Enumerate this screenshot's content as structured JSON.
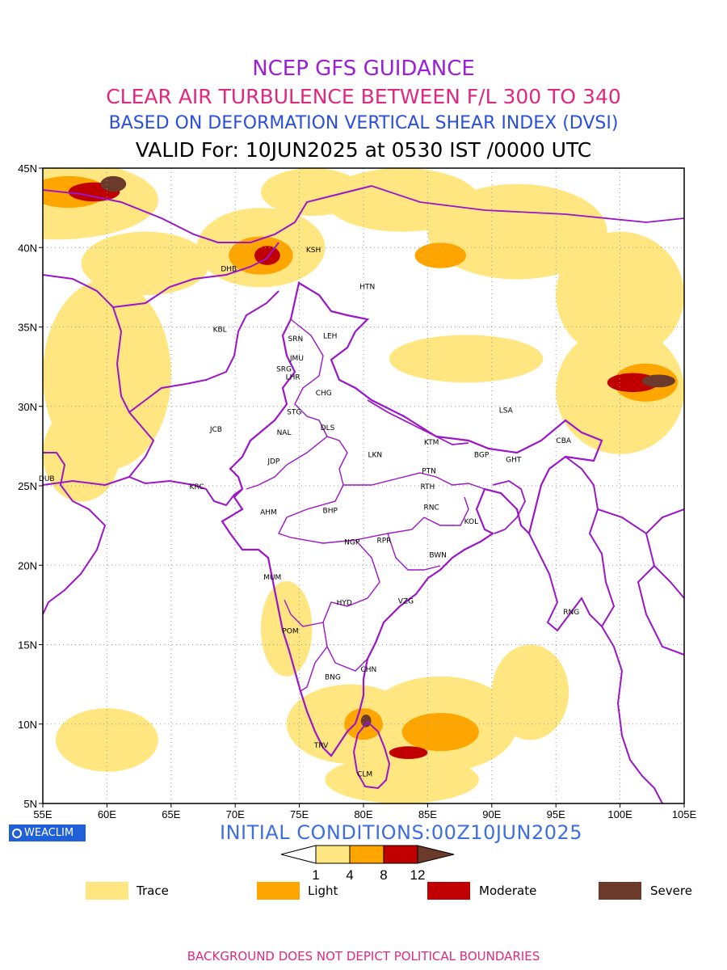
{
  "titles": {
    "line1": "NCEP GFS GUIDANCE",
    "line2": "CLEAR AIR TURBULENCE BETWEEN F/L 300 TO 340",
    "line3": "BASED ON DEFORMATION VERTICAL SHEAR INDEX (DVSI)",
    "line4": "VALID For: 10JUN2025 at 0530 IST /0000 UTC"
  },
  "map": {
    "lon_range": [
      55,
      105
    ],
    "lat_range": [
      5,
      45
    ],
    "lon_ticks": [
      "55E",
      "60E",
      "65E",
      "70E",
      "75E",
      "80E",
      "85E",
      "90E",
      "95E",
      "100E",
      "105E"
    ],
    "lat_ticks": [
      "45N",
      "40N",
      "35N",
      "30N",
      "25N",
      "20N",
      "15N",
      "10N",
      "5N"
    ],
    "grid": true,
    "stations": [
      {
        "code": "DHB",
        "lon": 69.5,
        "lat": 38.5
      },
      {
        "code": "KSH",
        "lon": 76.1,
        "lat": 39.7
      },
      {
        "code": "HTN",
        "lon": 80.3,
        "lat": 37.4
      },
      {
        "code": "KBL",
        "lon": 68.8,
        "lat": 34.7
      },
      {
        "code": "SRN",
        "lon": 74.7,
        "lat": 34.1
      },
      {
        "code": "LEH",
        "lon": 77.4,
        "lat": 34.3
      },
      {
        "code": "JMU",
        "lon": 74.8,
        "lat": 32.9
      },
      {
        "code": "SRG",
        "lon": 73.8,
        "lat": 32.2
      },
      {
        "code": "LHR",
        "lon": 74.5,
        "lat": 31.7
      },
      {
        "code": "CHG",
        "lon": 76.9,
        "lat": 30.7
      },
      {
        "code": "STG",
        "lon": 74.6,
        "lat": 29.5
      },
      {
        "code": "LSA",
        "lon": 91.1,
        "lat": 29.6
      },
      {
        "code": "JCB",
        "lon": 68.5,
        "lat": 28.4
      },
      {
        "code": "NAL",
        "lon": 73.8,
        "lat": 28.2
      },
      {
        "code": "DLS",
        "lon": 77.2,
        "lat": 28.5
      },
      {
        "code": "KTM",
        "lon": 85.3,
        "lat": 27.6
      },
      {
        "code": "CBA",
        "lon": 95.6,
        "lat": 27.7
      },
      {
        "code": "BGP",
        "lon": 89.2,
        "lat": 26.8
      },
      {
        "code": "GHT",
        "lon": 91.7,
        "lat": 26.5
      },
      {
        "code": "LKN",
        "lon": 80.9,
        "lat": 26.8
      },
      {
        "code": "JDP",
        "lon": 73.0,
        "lat": 26.4
      },
      {
        "code": "PTN",
        "lon": 85.1,
        "lat": 25.8
      },
      {
        "code": "DUB",
        "lon": 55.3,
        "lat": 25.3
      },
      {
        "code": "KRC",
        "lon": 67.0,
        "lat": 24.8
      },
      {
        "code": "RTH",
        "lon": 85.0,
        "lat": 24.8
      },
      {
        "code": "BHP",
        "lon": 77.4,
        "lat": 23.3
      },
      {
        "code": "AHM",
        "lon": 72.6,
        "lat": 23.2
      },
      {
        "code": "RNC",
        "lon": 85.3,
        "lat": 23.5
      },
      {
        "code": "KOL",
        "lon": 88.4,
        "lat": 22.6
      },
      {
        "code": "NGP",
        "lon": 79.1,
        "lat": 21.3
      },
      {
        "code": "RPR",
        "lon": 81.6,
        "lat": 21.4
      },
      {
        "code": "BWN",
        "lon": 85.8,
        "lat": 20.5
      },
      {
        "code": "MUM",
        "lon": 72.9,
        "lat": 19.1
      },
      {
        "code": "HYD",
        "lon": 78.5,
        "lat": 17.5
      },
      {
        "code": "VZG",
        "lon": 83.3,
        "lat": 17.6
      },
      {
        "code": "RNG",
        "lon": 96.2,
        "lat": 16.9
      },
      {
        "code": "POM",
        "lon": 74.3,
        "lat": 15.7
      },
      {
        "code": "CHN",
        "lon": 80.4,
        "lat": 13.3
      },
      {
        "code": "BNG",
        "lon": 77.6,
        "lat": 12.8
      },
      {
        "code": "TRV",
        "lon": 76.7,
        "lat": 8.5
      },
      {
        "code": "CLM",
        "lon": 80.1,
        "lat": 6.7
      }
    ],
    "turbulence_patches": [
      {
        "cat": "trace",
        "lon": 56,
        "lat": 43,
        "rx": 8,
        "ry": 2.5
      },
      {
        "cat": "trace",
        "lon": 63,
        "lat": 39,
        "rx": 5,
        "ry": 2
      },
      {
        "cat": "trace",
        "lon": 72,
        "lat": 40,
        "rx": 5,
        "ry": 2.5
      },
      {
        "cat": "trace",
        "lon": 76,
        "lat": 43.5,
        "rx": 4,
        "ry": 1.5
      },
      {
        "cat": "trace",
        "lon": 83,
        "lat": 43,
        "rx": 6,
        "ry": 2
      },
      {
        "cat": "trace",
        "lon": 92,
        "lat": 41,
        "rx": 7,
        "ry": 3
      },
      {
        "cat": "trace",
        "lon": 100,
        "lat": 37,
        "rx": 5,
        "ry": 4
      },
      {
        "cat": "trace",
        "lon": 100,
        "lat": 31,
        "rx": 5,
        "ry": 4
      },
      {
        "cat": "trace",
        "lon": 60,
        "lat": 32,
        "rx": 5,
        "ry": 6
      },
      {
        "cat": "trace",
        "lon": 58,
        "lat": 27,
        "rx": 3,
        "ry": 3
      },
      {
        "cat": "trace",
        "lon": 88,
        "lat": 33,
        "rx": 6,
        "ry": 1.5
      },
      {
        "cat": "trace",
        "lon": 79,
        "lat": 10,
        "rx": 5,
        "ry": 2.5
      },
      {
        "cat": "trace",
        "lon": 86,
        "lat": 10,
        "rx": 6,
        "ry": 3
      },
      {
        "cat": "trace",
        "lon": 83,
        "lat": 6.5,
        "rx": 6,
        "ry": 1.5
      },
      {
        "cat": "trace",
        "lon": 60,
        "lat": 9,
        "rx": 4,
        "ry": 2
      },
      {
        "cat": "trace",
        "lon": 93,
        "lat": 12,
        "rx": 3,
        "ry": 3
      },
      {
        "cat": "trace",
        "lon": 74,
        "lat": 16,
        "rx": 2,
        "ry": 3
      },
      {
        "cat": "light",
        "lon": 57,
        "lat": 43.5,
        "rx": 3,
        "ry": 1
      },
      {
        "cat": "light",
        "lon": 72,
        "lat": 39.5,
        "rx": 2.5,
        "ry": 1.2
      },
      {
        "cat": "light",
        "lon": 86,
        "lat": 39.5,
        "rx": 2,
        "ry": 0.8
      },
      {
        "cat": "light",
        "lon": 102,
        "lat": 31.5,
        "rx": 2.5,
        "ry": 1.2
      },
      {
        "cat": "light",
        "lon": 86,
        "lat": 9.5,
        "rx": 3,
        "ry": 1.2
      },
      {
        "cat": "light",
        "lon": 80,
        "lat": 10,
        "rx": 1.5,
        "ry": 1
      },
      {
        "cat": "moderate",
        "lon": 59,
        "lat": 43.5,
        "rx": 2,
        "ry": 0.6
      },
      {
        "cat": "moderate",
        "lon": 72.5,
        "lat": 39.5,
        "rx": 1,
        "ry": 0.6
      },
      {
        "cat": "moderate",
        "lon": 83.5,
        "lat": 8.2,
        "rx": 1.5,
        "ry": 0.4
      },
      {
        "cat": "moderate",
        "lon": 101,
        "lat": 31.5,
        "rx": 2,
        "ry": 0.6
      },
      {
        "cat": "severe",
        "lon": 60.5,
        "lat": 44,
        "rx": 1,
        "ry": 0.5
      },
      {
        "cat": "severe",
        "lon": 103,
        "lat": 31.6,
        "rx": 1.3,
        "ry": 0.4
      },
      {
        "cat": "severe",
        "lon": 80.2,
        "lat": 10.2,
        "rx": 0.4,
        "ry": 0.4
      }
    ]
  },
  "initial_conditions": "INITIAL CONDITIONS:00Z10JUN2025",
  "colorbar": {
    "ticks": [
      "1",
      "4",
      "8",
      "12"
    ],
    "colors": [
      "#ffe680",
      "#ffa500",
      "#c00000",
      "#6b3a2a"
    ]
  },
  "legend": [
    {
      "label": "Trace",
      "color": "#ffe680"
    },
    {
      "label": "Light",
      "color": "#ffa500"
    },
    {
      "label": "Moderate",
      "color": "#c00000"
    },
    {
      "label": "Severe",
      "color": "#6b3a2a"
    }
  ],
  "badge": "WEACLIM",
  "footer": "BACKGROUND DOES NOT DEPICT POLITICAL BOUNDARIES"
}
